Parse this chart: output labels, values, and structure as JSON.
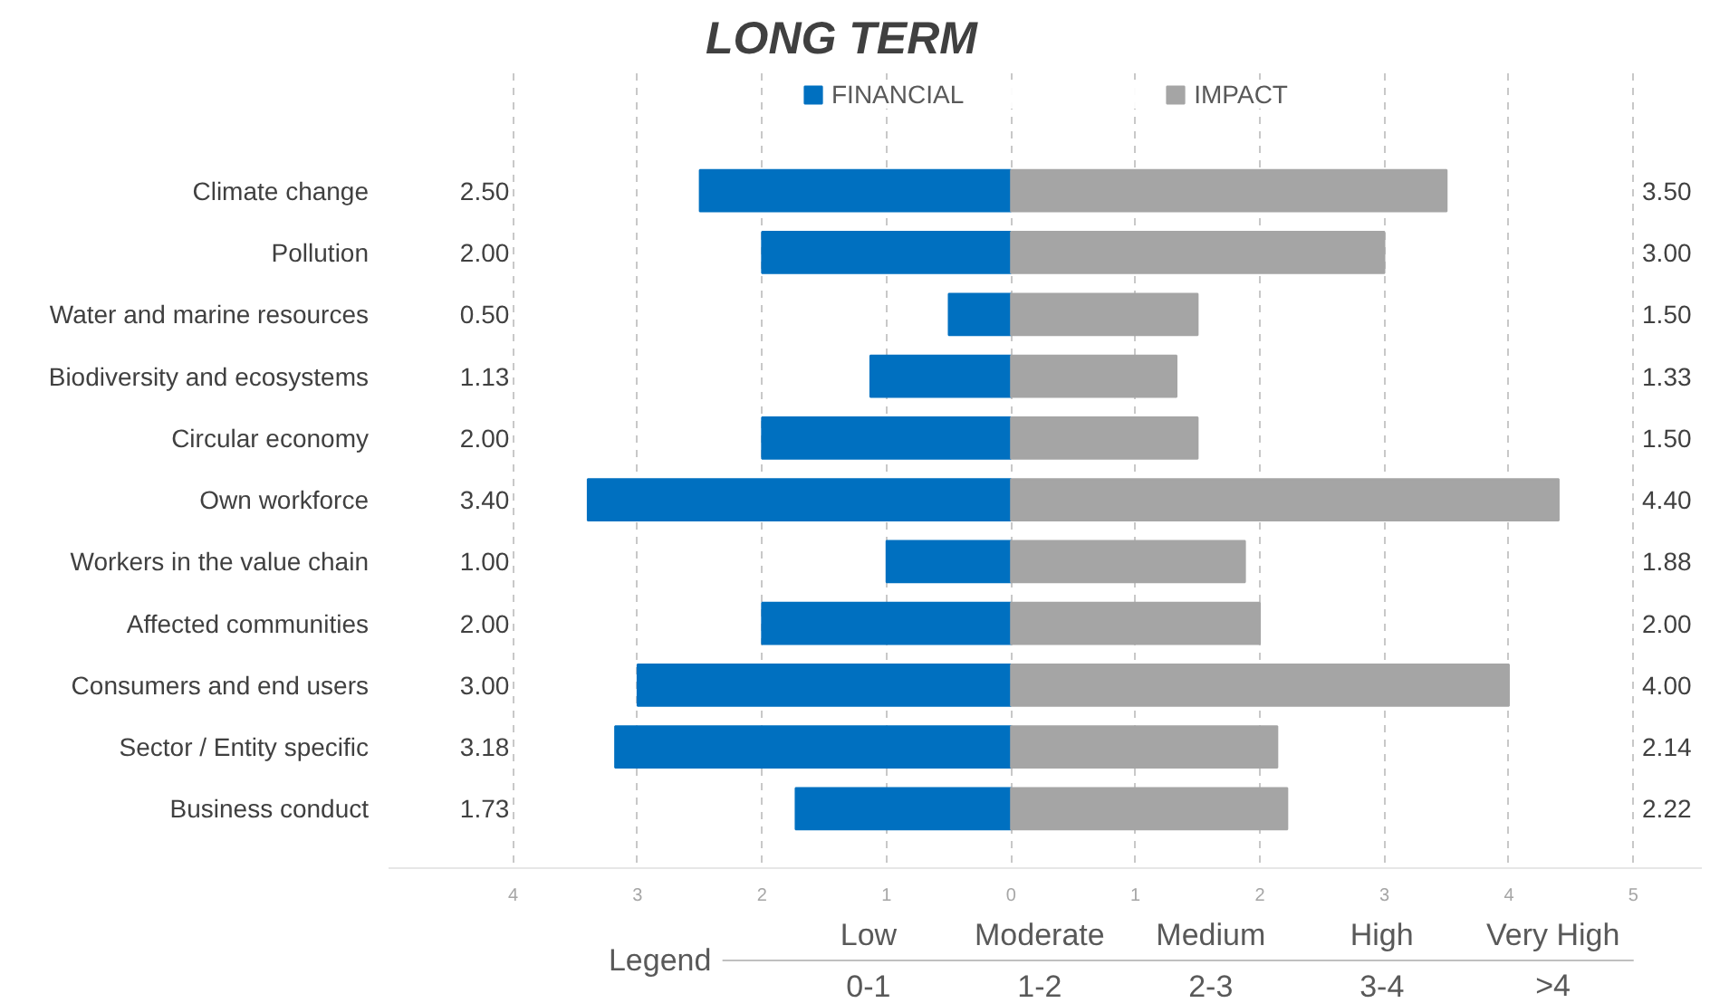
{
  "chart_data": {
    "type": "bar",
    "orientation": "horizontal",
    "title": "LONG TERM",
    "categories": [
      "Climate change",
      "Pollution",
      "Water and marine resources",
      "Biodiversity and ecosystems",
      "Circular economy",
      "Own workforce",
      "Workers in the value chain",
      "Affected communities",
      "Consumers and end users",
      "Sector / Entity specific",
      "Business conduct"
    ],
    "series": [
      {
        "name": "FINANCIAL",
        "color": "#0070c0",
        "values": [
          2.5,
          2.0,
          0.5,
          1.13,
          2.0,
          3.4,
          1.0,
          2.0,
          3.0,
          3.18,
          1.73
        ],
        "base": [
          -2.5,
          -2.0,
          -0.5,
          -1.13,
          -2.0,
          -3.4,
          -1.0,
          -2.0,
          -3.0,
          -3.18,
          -1.73
        ],
        "value_labels": [
          "2.50",
          "2.00",
          "0.50",
          "1.13",
          "2.00",
          "3.40",
          "1.00",
          "2.00",
          "3.00",
          "3.18",
          "1.73"
        ]
      },
      {
        "name": "IMPACT",
        "color": "#a5a5a5",
        "values": [
          3.5,
          3.0,
          1.5,
          1.33,
          1.5,
          4.4,
          1.88,
          2.0,
          4.0,
          2.14,
          2.22
        ],
        "value_labels": [
          "3.50",
          "3.00",
          "1.50",
          "1.33",
          "1.50",
          "4.40",
          "1.88",
          "2.00",
          "4.00",
          "2.14",
          "2.22"
        ]
      }
    ],
    "xlim": [
      -5,
      5.55
    ],
    "xticks": [
      {
        "value": -4,
        "label": "4"
      },
      {
        "value": -3,
        "label": "3"
      },
      {
        "value": -2,
        "label": "2"
      },
      {
        "value": -1,
        "label": "1"
      },
      0,
      1,
      2,
      3,
      4,
      5
    ],
    "grid": "x",
    "legend": "top",
    "annotations": [
      "Legend",
      "Low",
      "0-1",
      "Moderate",
      "1-2",
      "Medium",
      "2-3",
      "High",
      "3-4",
      "Very High",
      ">4"
    ]
  }
}
